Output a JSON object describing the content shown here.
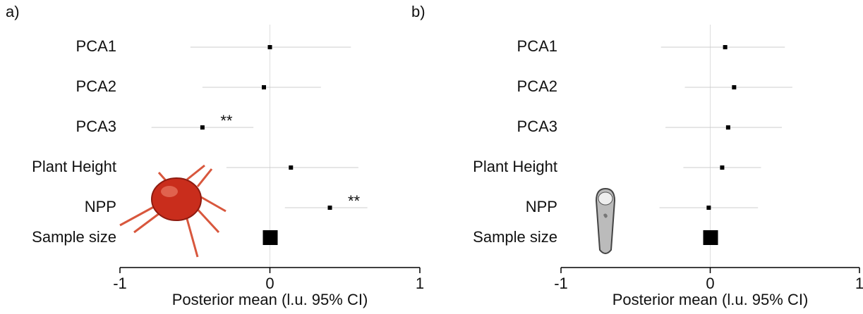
{
  "chart_data": [
    {
      "type": "forest",
      "panel_label": "a)",
      "categories": [
        "PCA1",
        "PCA2",
        "PCA3",
        "Plant Height",
        "NPP"
      ],
      "values": [
        0.0,
        -0.04,
        -0.45,
        0.14,
        0.4
      ],
      "ci_lower": [
        -0.53,
        -0.45,
        -0.79,
        -0.29,
        0.1
      ],
      "ci_upper": [
        0.54,
        0.34,
        -0.11,
        0.59,
        0.65
      ],
      "significance": [
        null,
        null,
        "**",
        null,
        "**"
      ],
      "sample_size_label": "Sample size",
      "xlabel": "Posterior mean (l.u. 95% CI)",
      "xlim": [
        -1,
        1
      ],
      "xticks": [
        -1,
        0,
        1
      ]
    },
    {
      "type": "forest",
      "panel_label": "b)",
      "categories": [
        "PCA1",
        "PCA2",
        "PCA3",
        "Plant Height",
        "NPP"
      ],
      "values": [
        0.1,
        0.16,
        0.12,
        0.08,
        -0.01
      ],
      "ci_lower": [
        -0.33,
        -0.17,
        -0.3,
        -0.18,
        -0.34
      ],
      "ci_upper": [
        0.5,
        0.55,
        0.48,
        0.34,
        0.32
      ],
      "significance": [
        null,
        null,
        null,
        null,
        null
      ],
      "sample_size_label": "Sample size",
      "xlabel": "Posterior mean (l.u. 95% CI)",
      "xlim": [
        -1,
        1
      ],
      "xticks": [
        -1,
        0,
        1
      ]
    }
  ]
}
